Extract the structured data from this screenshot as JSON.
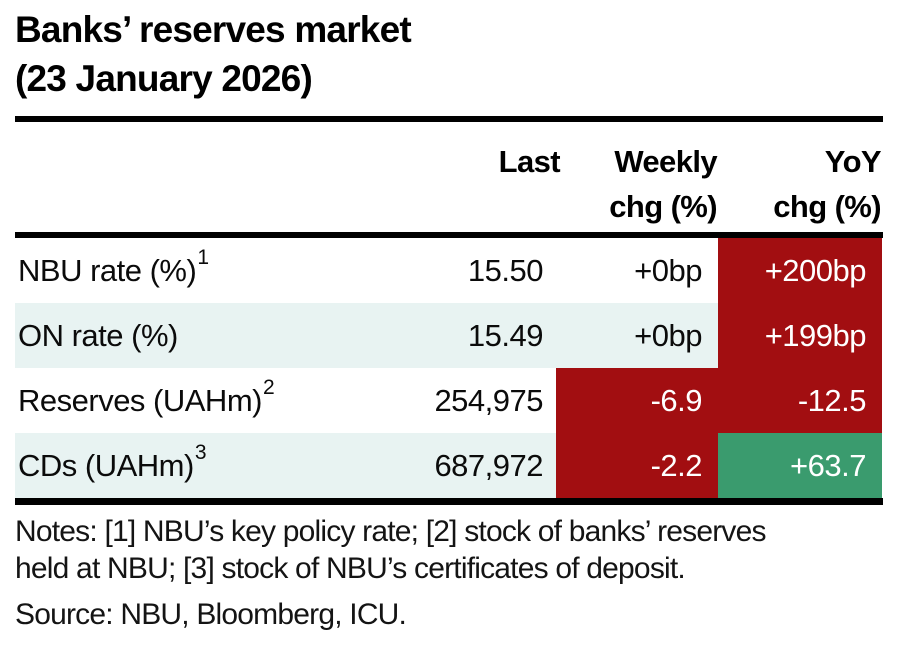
{
  "title": {
    "line1": "Banks’ reserves market",
    "line2": "(23 January 2026)"
  },
  "table": {
    "columns": [
      {
        "line1": "Last",
        "line2": ""
      },
      {
        "line1": "Weekly",
        "line2": "chg (%)"
      },
      {
        "line1": "YoY",
        "line2": "chg (%)"
      }
    ],
    "rows": [
      {
        "label": "NBU rate (%)",
        "footnote": "1",
        "last": "15.50",
        "weekly": "+0bp",
        "yoy": "+200bp"
      },
      {
        "label": "ON rate (%)",
        "footnote": "",
        "last": "15.49",
        "weekly": "+0bp",
        "yoy": "+199bp"
      },
      {
        "label": "Reserves (UAHm)",
        "footnote": "2",
        "last": "254,975",
        "weekly": "-6.9",
        "yoy": "-12.5"
      },
      {
        "label": "CDs (UAHm)",
        "footnote": "3",
        "last": "687,972",
        "weekly": "-2.2",
        "yoy": "+63.7"
      }
    ]
  },
  "notes": {
    "line1": "Notes: [1] NBU’s key policy rate; [2] stock of banks’ reserves",
    "line2": "held at NBU; [3] stock of NBU’s certificates of deposit."
  },
  "source": "Source: NBU, Bloomberg, ICU.",
  "colors": {
    "negative_red": "#a20e11",
    "positive_green": "#3a9b6e",
    "row_stripe": "#e8f3f2",
    "rule_black": "#000000"
  },
  "chart_data": {
    "type": "table",
    "title": "Banks’ reserves market (23 January 2026)",
    "columns": [
      "",
      "Last",
      "Weekly chg (%)",
      "YoY chg (%)"
    ],
    "rows": [
      [
        "NBU rate (%) [1]",
        "15.50",
        "+0bp",
        "+200bp"
      ],
      [
        "ON rate (%)",
        "15.49",
        "+0bp",
        "+199bp"
      ],
      [
        "Reserves (UAHm) [2]",
        "254,975",
        "-6.9",
        "-12.5"
      ],
      [
        "CDs (UAHm) [3]",
        "687,972",
        "-2.2",
        "+63.7"
      ]
    ]
  }
}
